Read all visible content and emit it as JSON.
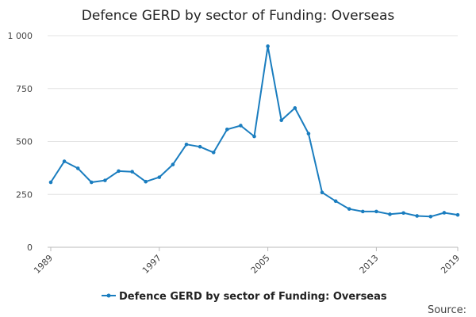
{
  "chart_data": {
    "type": "line",
    "title": "Defence GERD by sector of Funding: Overseas",
    "xlabel": "",
    "ylabel": "",
    "x": [
      1989,
      1990,
      1991,
      1992,
      1993,
      1994,
      1995,
      1996,
      1997,
      1998,
      1999,
      2000,
      2001,
      2002,
      2003,
      2004,
      2005,
      2006,
      2007,
      2008,
      2009,
      2010,
      2011,
      2012,
      2013,
      2014,
      2015,
      2016,
      2017,
      2018,
      2019
    ],
    "series": [
      {
        "name": "Defence GERD by sector of Funding: Overseas",
        "color": "#1a7dbf",
        "values": [
          307,
          406,
          373,
          307,
          316,
          360,
          357,
          310,
          331,
          391,
          486,
          475,
          448,
          557,
          575,
          524,
          950,
          600,
          658,
          537,
          259,
          218,
          181,
          169,
          169,
          156,
          162,
          148,
          145,
          163,
          153
        ]
      }
    ],
    "ylim": [
      0,
      1000
    ],
    "y_ticks": [
      0,
      250,
      500,
      750,
      1000
    ],
    "y_tick_labels": [
      "0",
      "250",
      "500",
      "750",
      "1 000"
    ],
    "x_ticks": [
      1989,
      1997,
      2005,
      2013,
      2019
    ],
    "x_tick_labels": [
      "1989",
      "1997",
      "2005",
      "2013",
      "2019"
    ],
    "grid": "horizontal",
    "legend_position": "bottom",
    "source_label": "Source:"
  }
}
